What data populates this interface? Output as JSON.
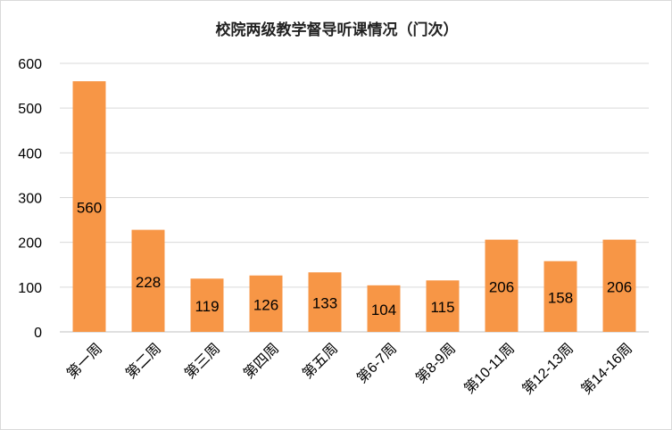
{
  "chart_data": {
    "type": "bar",
    "title": "校院两级教学督导听课情况（门次）",
    "xlabel": "",
    "ylabel": "",
    "categories": [
      "第一周",
      "第二周",
      "第三周",
      "第四周",
      "第五周",
      "第6-7周",
      "第8-9周",
      "第10-11周",
      "第12-13周",
      "第14-16周"
    ],
    "values": [
      560,
      228,
      119,
      126,
      133,
      104,
      115,
      206,
      158,
      206
    ],
    "ylim": [
      0,
      600
    ],
    "yticks": [
      0,
      100,
      200,
      300,
      400,
      500,
      600
    ],
    "grid": true,
    "legend": "none",
    "colors": {
      "bar": "#F79646",
      "grid": "#D9D9D9",
      "axis": "#BFBFBF",
      "text": "#000000"
    }
  }
}
